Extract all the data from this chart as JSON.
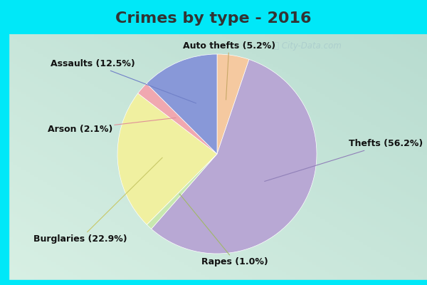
{
  "title": "Crimes by type - 2016",
  "labels": [
    "Auto thefts",
    "Thefts",
    "Rapes",
    "Burglaries",
    "Arson",
    "Assaults"
  ],
  "values": [
    5.2,
    56.2,
    1.0,
    22.9,
    2.1,
    12.5
  ],
  "colors": [
    "#f5c9a0",
    "#b8a8d4",
    "#c8e8b0",
    "#f0f0a0",
    "#f0a8b0",
    "#8898d8"
  ],
  "label_texts": [
    "Auto thefts (5.2%)",
    "Thefts (56.2%)",
    "Rapes (1.0%)",
    "Burglaries (22.9%)",
    "Arson (2.1%)",
    "Assaults (12.5%)"
  ],
  "background_cyan": "#00e8f8",
  "background_mint_light": "#c8eee0",
  "background_mint_dark": "#b0dcc8",
  "title_fontsize": 16,
  "label_fontsize": 9,
  "title_color": "#333333",
  "label_color": "#111111",
  "watermark_color": "#aacccc",
  "watermark_text": "@City-Data.com",
  "line_colors": [
    "#c8a868",
    "#9080b8",
    "#a0b868",
    "#c8c868",
    "#e09098",
    "#7080c8"
  ]
}
